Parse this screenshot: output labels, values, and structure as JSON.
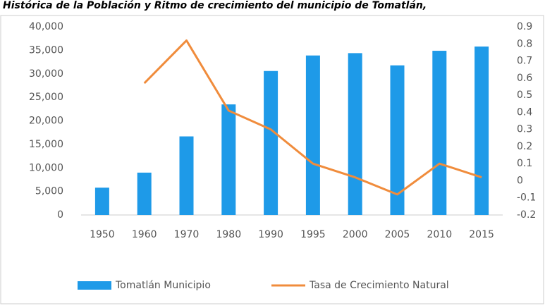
{
  "chart_data": {
    "type": "bar",
    "title": "Histórica de la Población y Ritmo de crecimiento del municipio de Tomatlán,",
    "categories": [
      "1950",
      "1960",
      "1970",
      "1980",
      "1990",
      "1995",
      "2000",
      "2005",
      "2010",
      "2015"
    ],
    "series": [
      {
        "name": "Tomatlán Municipio",
        "color": "#1e9ae8",
        "type": "bar",
        "values": [
          5800,
          9000,
          16700,
          23500,
          30600,
          33900,
          34400,
          31800,
          34900,
          35800
        ]
      },
      {
        "name": "Tasa de Crecimiento Natural",
        "color": "#f08c3c",
        "type": "line",
        "axis": "y2",
        "values": [
          null,
          0.57,
          0.82,
          0.41,
          0.3,
          0.1,
          0.02,
          -0.08,
          0.1,
          0.02
        ]
      }
    ],
    "ylim": [
      0,
      40000
    ],
    "yticks": [
      0,
      {
        "value": 5000,
        "label": "5,000"
      },
      {
        "value": 10000,
        "label": "10,000"
      },
      {
        "value": 15000,
        "label": "15,000"
      },
      {
        "value": 20000,
        "label": "20,000"
      },
      {
        "value": 25000,
        "label": "25,000"
      },
      {
        "value": 30000,
        "label": "30,000"
      },
      {
        "value": 35000,
        "label": "35,000"
      },
      {
        "value": 40000,
        "label": "40,000"
      }
    ],
    "y2lim": [
      -0.2,
      0.9
    ],
    "y2ticks": [
      -0.2,
      -0.1,
      0,
      0.1,
      0.2,
      0.3,
      0.4,
      0.5,
      0.6,
      0.7,
      0.8,
      0.9
    ],
    "legend": "bottom"
  }
}
